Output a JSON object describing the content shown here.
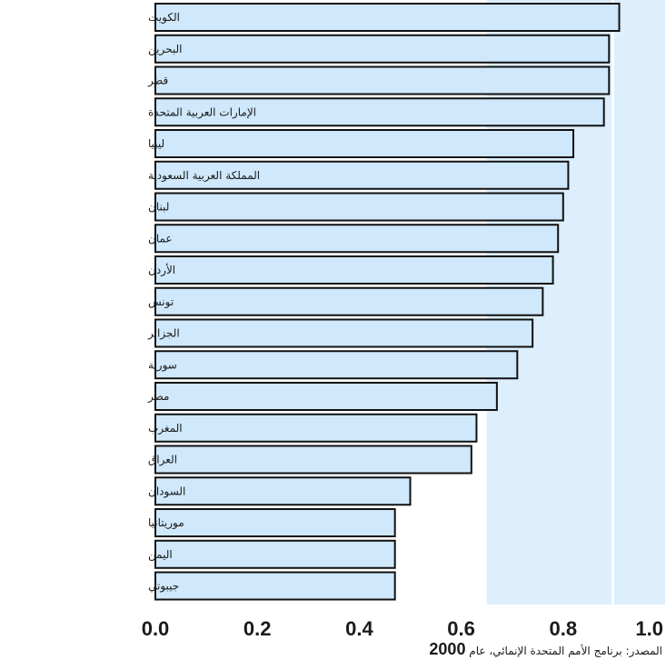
{
  "chart_data": {
    "type": "bar",
    "orientation": "horizontal",
    "categories": [
      "الكويت",
      "البحرين",
      "قطر",
      "الإمارات العربية المتحدة",
      "ليبيا",
      "المملكة العربية السعودية",
      "لبنان",
      "عمان",
      "الأردن",
      "تونس",
      "الجزائر",
      "سورية",
      "مصر",
      "المغرب",
      "العراق",
      "السودان",
      "موريتانيا",
      "اليمن",
      "جيبوتي"
    ],
    "values": [
      0.91,
      0.89,
      0.89,
      0.88,
      0.82,
      0.81,
      0.8,
      0.79,
      0.78,
      0.76,
      0.74,
      0.71,
      0.67,
      0.63,
      0.62,
      0.5,
      0.47,
      0.47,
      0.47
    ],
    "x_ticks": [
      "0.0",
      "0.2",
      "0.4",
      "0.6",
      "0.8",
      "1.0"
    ],
    "xlim": [
      0,
      1.0
    ],
    "shaded_bands": [
      {
        "from": 0.65,
        "to": 0.895
      },
      {
        "from": 0.9,
        "to": 1.0
      }
    ],
    "bar_color": "#cfe8fb",
    "band_color": "#ddeefc",
    "source_text": "المصدر: برنامج الأمم المتحدة الإنمائي، عام",
    "source_year": "2000"
  }
}
